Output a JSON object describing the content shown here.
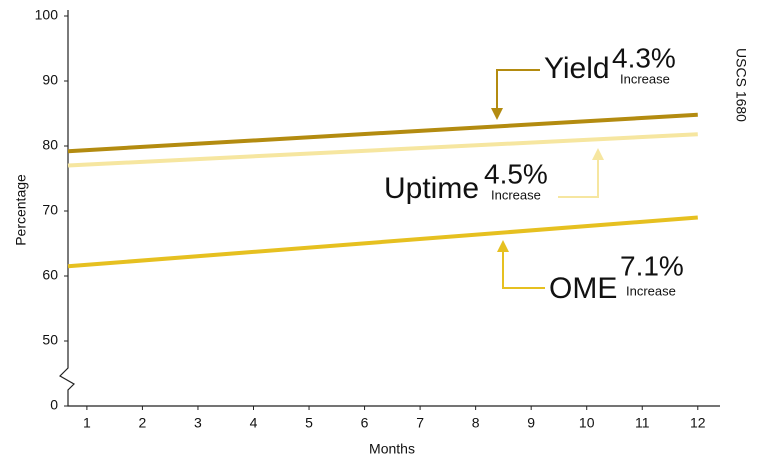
{
  "chart_data": {
    "type": "line",
    "x_label": "Months",
    "y_label": "Percentage",
    "source": "USCS 1680",
    "xlim": [
      0.66,
      12.4
    ],
    "xticks": [
      1,
      2,
      3,
      4,
      5,
      6,
      7,
      8,
      9,
      10,
      11,
      12
    ],
    "ylim": [
      0,
      100
    ],
    "yticks": [
      0,
      50,
      60,
      70,
      80,
      90,
      100
    ],
    "y_break": [
      0,
      50
    ],
    "series": [
      {
        "name": "Yield",
        "color": "#b38b10",
        "x": [
          0.66,
          12
        ],
        "values": [
          79.2,
          84.8
        ]
      },
      {
        "name": "Uptime",
        "color": "#f6e6a0",
        "x": [
          0.66,
          12
        ],
        "values": [
          77,
          81.8
        ]
      },
      {
        "name": "OME",
        "color": "#e6c020",
        "x": [
          0.66,
          12
        ],
        "values": [
          61.5,
          69
        ]
      }
    ],
    "annotations": [
      {
        "series": "Yield",
        "text": "Yield",
        "change": "4.3%",
        "note": "Increase"
      },
      {
        "series": "Uptime",
        "text": "Uptime",
        "change": "4.5%",
        "note": "Increase"
      },
      {
        "series": "OME",
        "text": "OME",
        "change": "7.1%",
        "note": "Increase"
      }
    ]
  }
}
